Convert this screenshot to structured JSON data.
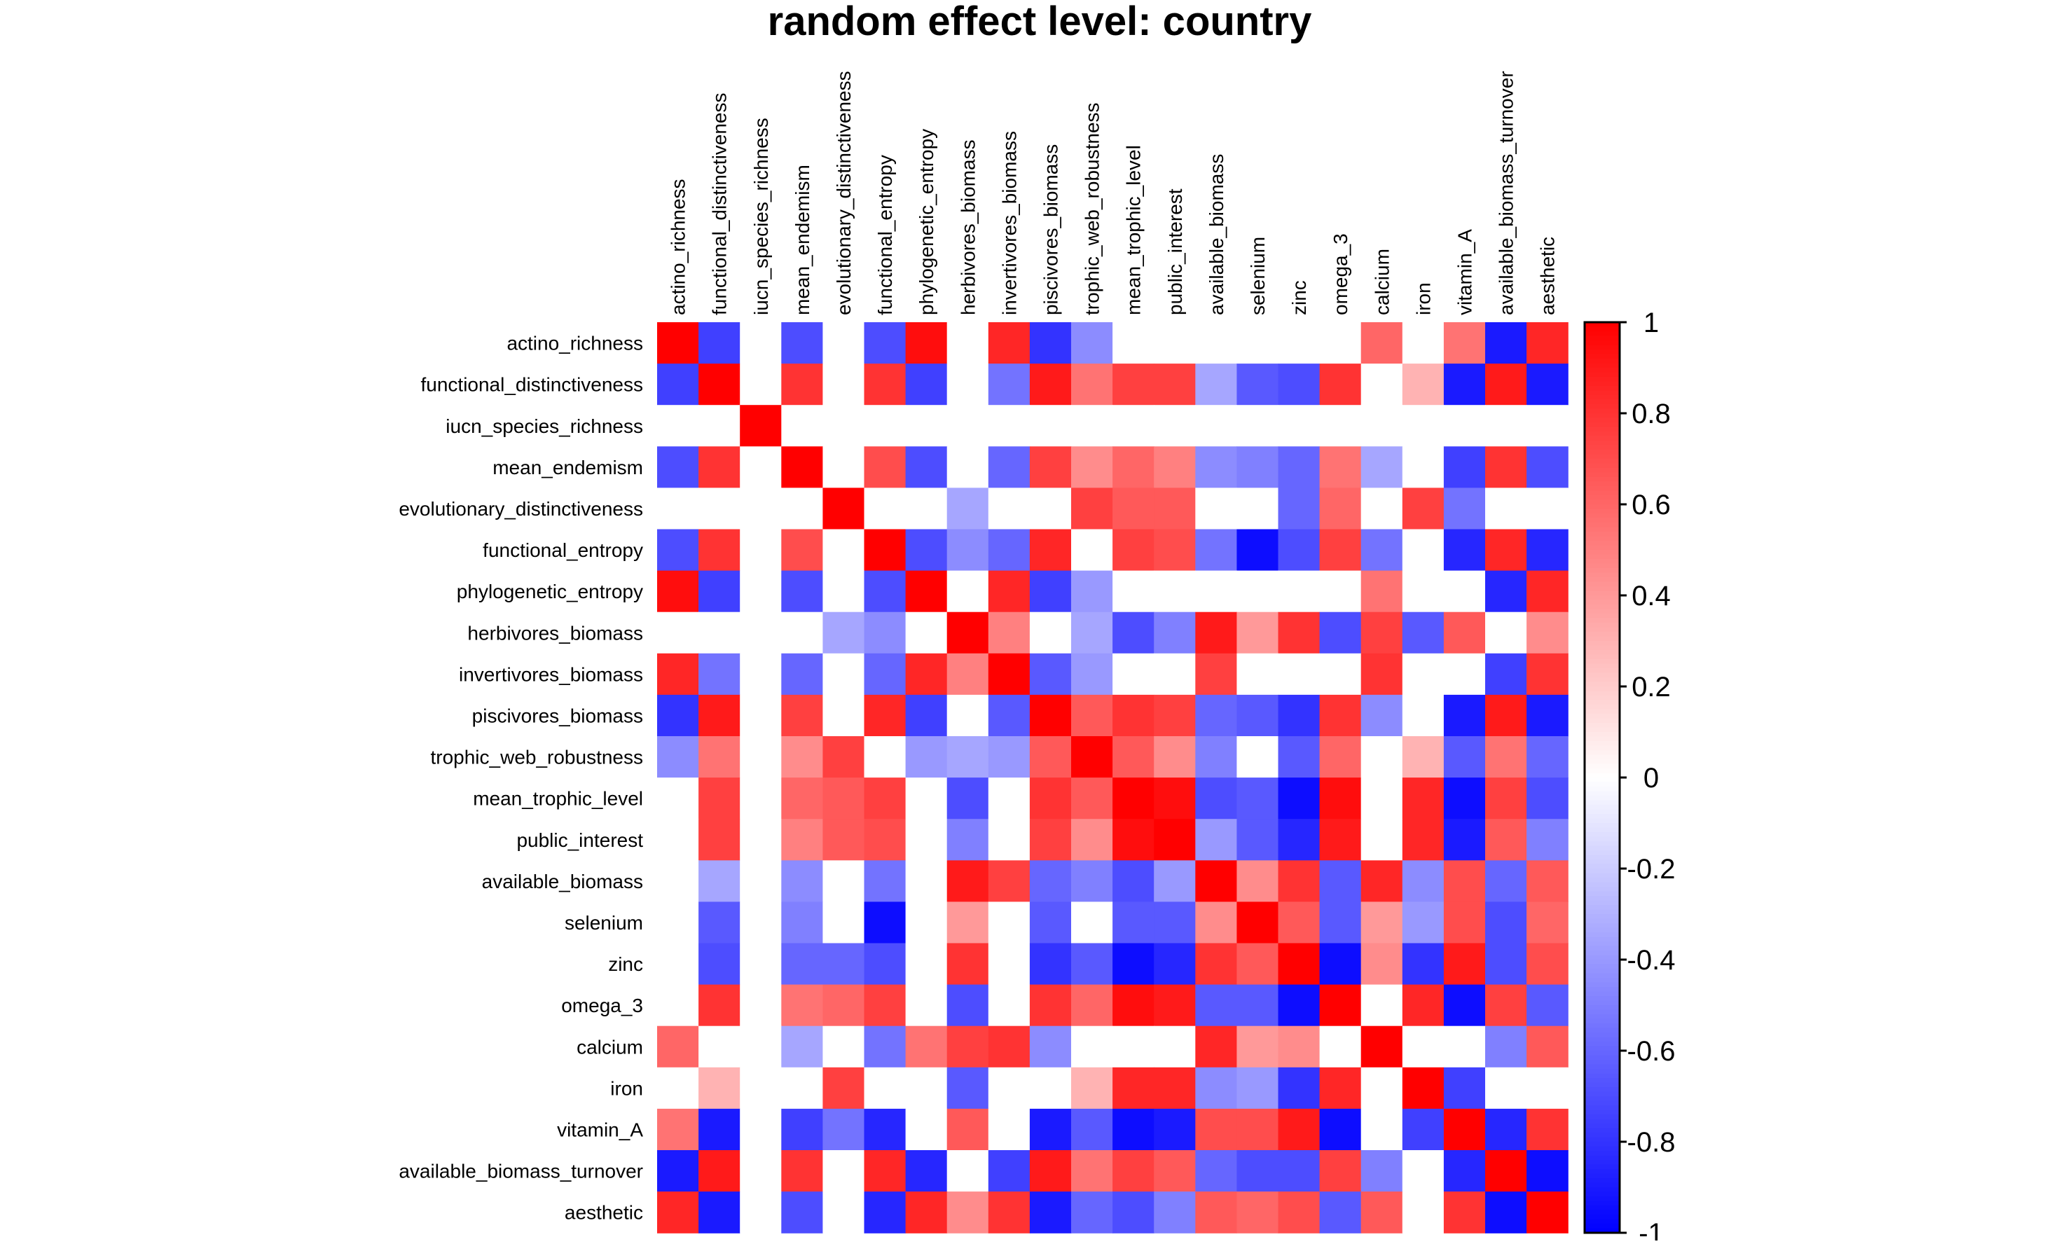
{
  "chart_data": {
    "type": "heatmap",
    "title": "random effect level: country",
    "variables": [
      "actino_richness",
      "functional_distinctiveness",
      "iucn_species_richness",
      "mean_endemism",
      "evolutionary_distinctiveness",
      "functional_entropy",
      "phylogenetic_entropy",
      "herbivores_biomass",
      "invertivores_biomass",
      "piscivores_biomass",
      "trophic_web_robustness",
      "mean_trophic_level",
      "public_interest",
      "available_biomass",
      "selenium",
      "zinc",
      "omega_3",
      "calcium",
      "iron",
      "vitamin_A",
      "available_biomass_turnover",
      "aesthetic"
    ],
    "value_range": [
      -1,
      1
    ],
    "colorbar_ticks": [
      "1",
      "0.8",
      "0.6",
      "0.4",
      "0.2",
      "0",
      "-0.2",
      "-0.4",
      "-0.6",
      "-0.8",
      "-1"
    ],
    "colorbar_tick_values": [
      1,
      0.8,
      0.6,
      0.4,
      0.2,
      0,
      -0.2,
      -0.4,
      -0.6,
      -0.8,
      -1
    ],
    "colors": {
      "negative": "#0000ff",
      "zero": "#ffffff",
      "positive": "#ff0000"
    },
    "matrix": [
      [
        1,
        -0.75,
        0,
        -0.7,
        0,
        -0.7,
        0.95,
        0,
        0.85,
        -0.8,
        -0.45,
        0,
        0,
        0,
        0,
        0,
        0,
        0.6,
        0,
        0.55,
        -0.9,
        0.85
      ],
      [
        -0.75,
        1,
        0,
        0.8,
        0,
        0.8,
        -0.75,
        0,
        -0.55,
        0.9,
        0.55,
        0.75,
        0.75,
        -0.35,
        -0.65,
        -0.7,
        0.8,
        0,
        0.3,
        -0.9,
        0.9,
        -0.9
      ],
      [
        0,
        0,
        1,
        0,
        0,
        0,
        0,
        0,
        0,
        0,
        0,
        0,
        0,
        0,
        0,
        0,
        0,
        0,
        0,
        0,
        0,
        0
      ],
      [
        -0.7,
        0.8,
        0,
        1,
        0,
        0.7,
        -0.7,
        0,
        -0.6,
        0.75,
        0.45,
        0.6,
        0.5,
        -0.45,
        -0.5,
        -0.6,
        0.55,
        -0.35,
        0,
        -0.75,
        0.8,
        -0.7
      ],
      [
        0,
        0,
        0,
        0,
        1,
        0,
        0,
        -0.35,
        0,
        0,
        0.75,
        0.65,
        0.65,
        0,
        0,
        -0.6,
        0.6,
        0,
        0.75,
        -0.55,
        0,
        0
      ],
      [
        -0.7,
        0.8,
        0,
        0.7,
        0,
        1,
        -0.7,
        -0.45,
        -0.6,
        0.85,
        0,
        0.75,
        0.7,
        -0.55,
        -0.95,
        -0.7,
        0.75,
        -0.55,
        0,
        -0.85,
        0.85,
        -0.85
      ],
      [
        0.95,
        -0.75,
        0,
        -0.7,
        0,
        -0.7,
        1,
        0,
        0.85,
        -0.75,
        -0.4,
        0,
        0,
        0,
        0,
        0,
        0,
        0.55,
        0,
        0,
        -0.85,
        0.85
      ],
      [
        0,
        0,
        0,
        0,
        -0.35,
        -0.45,
        0,
        1,
        0.5,
        0,
        -0.35,
        -0.7,
        -0.5,
        0.9,
        0.4,
        0.8,
        -0.7,
        0.75,
        -0.65,
        0.65,
        0,
        0.45
      ],
      [
        0.85,
        -0.55,
        0,
        -0.6,
        0,
        -0.6,
        0.85,
        0.5,
        1,
        -0.65,
        -0.4,
        0,
        0,
        0.75,
        0,
        0,
        0,
        0.8,
        0,
        0,
        -0.75,
        0.8
      ],
      [
        -0.8,
        0.9,
        0,
        0.75,
        0,
        0.85,
        -0.75,
        0,
        -0.65,
        1,
        0.65,
        0.8,
        0.75,
        -0.6,
        -0.65,
        -0.8,
        0.8,
        -0.45,
        0,
        -0.9,
        0.9,
        -0.9
      ],
      [
        -0.45,
        0.55,
        0,
        0.45,
        0.75,
        0,
        -0.4,
        -0.35,
        -0.4,
        0.65,
        1,
        0.65,
        0.45,
        -0.5,
        0,
        -0.65,
        0.6,
        0,
        0.3,
        -0.65,
        0.55,
        -0.6
      ],
      [
        0,
        0.75,
        0,
        0.6,
        0.65,
        0.75,
        0,
        -0.7,
        0,
        0.8,
        0.65,
        1,
        0.95,
        -0.7,
        -0.65,
        -0.95,
        0.95,
        0,
        0.85,
        -0.95,
        0.75,
        -0.7
      ],
      [
        0,
        0.75,
        0,
        0.5,
        0.65,
        0.7,
        0,
        -0.5,
        0,
        0.75,
        0.45,
        0.95,
        1,
        -0.4,
        -0.65,
        -0.85,
        0.9,
        0,
        0.85,
        -0.9,
        0.65,
        -0.5
      ],
      [
        0,
        -0.35,
        0,
        -0.45,
        0,
        -0.55,
        0,
        0.9,
        0.75,
        -0.6,
        -0.5,
        -0.7,
        -0.4,
        1,
        0.45,
        0.8,
        -0.65,
        0.85,
        -0.45,
        0.7,
        -0.6,
        0.65
      ],
      [
        0,
        -0.65,
        0,
        -0.5,
        0,
        -0.95,
        0,
        0.4,
        0,
        -0.65,
        0,
        -0.65,
        -0.65,
        0.45,
        1,
        0.65,
        -0.65,
        0.4,
        -0.4,
        0.7,
        -0.7,
        0.6
      ],
      [
        0,
        -0.7,
        0,
        -0.6,
        -0.6,
        -0.7,
        0,
        0.8,
        0,
        -0.8,
        -0.65,
        -0.95,
        -0.85,
        0.8,
        0.65,
        1,
        -0.95,
        0.45,
        -0.8,
        0.9,
        -0.7,
        0.7
      ],
      [
        0,
        0.8,
        0,
        0.55,
        0.6,
        0.75,
        0,
        -0.7,
        0,
        0.8,
        0.6,
        0.95,
        0.9,
        -0.65,
        -0.65,
        -0.95,
        1,
        0,
        0.85,
        -0.95,
        0.75,
        -0.65
      ],
      [
        0.6,
        0,
        0,
        -0.35,
        0,
        -0.55,
        0.55,
        0.75,
        0.8,
        -0.45,
        0,
        0,
        0,
        0.85,
        0.4,
        0.45,
        0,
        1,
        0,
        0,
        -0.5,
        0.65
      ],
      [
        0,
        0.3,
        0,
        0,
        0.75,
        0,
        0,
        -0.65,
        0,
        0,
        0.3,
        0.85,
        0.85,
        -0.45,
        -0.4,
        -0.8,
        0.85,
        0,
        1,
        -0.75,
        0,
        0
      ],
      [
        0.55,
        -0.9,
        0,
        -0.75,
        -0.55,
        -0.85,
        0,
        0.65,
        0,
        -0.9,
        -0.65,
        -0.95,
        -0.9,
        0.7,
        0.7,
        0.9,
        -0.95,
        0,
        -0.75,
        1,
        -0.85,
        0.8
      ],
      [
        -0.9,
        0.9,
        0,
        0.8,
        0,
        0.85,
        -0.85,
        0,
        -0.75,
        0.9,
        0.55,
        0.75,
        0.65,
        -0.6,
        -0.7,
        -0.7,
        0.75,
        -0.5,
        0,
        -0.85,
        1,
        -0.95
      ],
      [
        0.85,
        -0.9,
        0,
        -0.7,
        0,
        -0.85,
        0.85,
        0.45,
        0.8,
        -0.9,
        -0.6,
        -0.7,
        -0.5,
        0.65,
        0.6,
        0.7,
        -0.65,
        0.65,
        0,
        0.8,
        -0.95,
        1
      ]
    ]
  }
}
